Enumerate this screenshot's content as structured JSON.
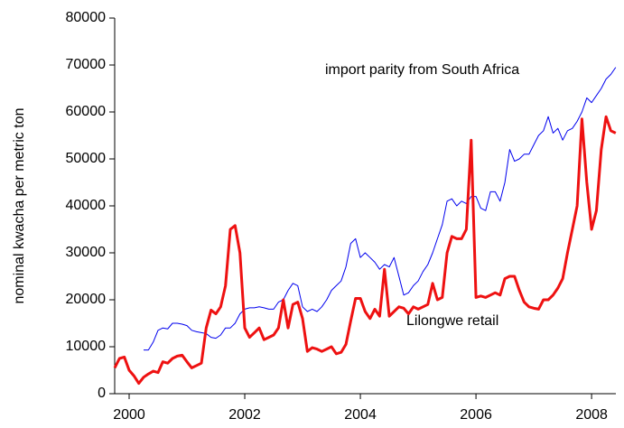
{
  "chart_data": {
    "type": "line",
    "y_label": "nominal kwacha per metric ton",
    "annotations": [
      "import parity from South Africa",
      "Lilongwe retail"
    ],
    "x": [
      1999.75,
      1999.833,
      1999.917,
      2000,
      2000.083,
      2000.167,
      2000.25,
      2000.333,
      2000.417,
      2000.5,
      2000.583,
      2000.667,
      2000.75,
      2000.833,
      2000.917,
      2001,
      2001.083,
      2001.167,
      2001.25,
      2001.333,
      2001.417,
      2001.5,
      2001.583,
      2001.667,
      2001.75,
      2001.833,
      2001.917,
      2002,
      2002.083,
      2002.167,
      2002.25,
      2002.333,
      2002.417,
      2002.5,
      2002.583,
      2002.667,
      2002.75,
      2002.833,
      2002.917,
      2003,
      2003.083,
      2003.167,
      2003.25,
      2003.333,
      2003.417,
      2003.5,
      2003.583,
      2003.667,
      2003.75,
      2003.833,
      2003.917,
      2004,
      2004.083,
      2004.167,
      2004.25,
      2004.333,
      2004.417,
      2004.5,
      2004.583,
      2004.667,
      2004.75,
      2004.833,
      2004.917,
      2005,
      2005.083,
      2005.167,
      2005.25,
      2005.333,
      2005.417,
      2005.5,
      2005.583,
      2005.667,
      2005.75,
      2005.833,
      2005.917,
      2006,
      2006.083,
      2006.167,
      2006.25,
      2006.333,
      2006.417,
      2006.5,
      2006.583,
      2006.667,
      2006.75,
      2006.833,
      2006.917,
      2007,
      2007.083,
      2007.167,
      2007.25,
      2007.333,
      2007.417,
      2007.5,
      2007.583,
      2007.667,
      2007.75,
      2007.833,
      2007.917,
      2008,
      2008.083,
      2008.167,
      2008.25,
      2008.333,
      2008.417
    ],
    "series": [
      {
        "name": "import parity from South Africa",
        "color": "#0000ee",
        "width": 1,
        "values": [
          null,
          null,
          null,
          null,
          null,
          null,
          9300,
          9300,
          11000,
          13500,
          14000,
          13800,
          15000,
          15000,
          14800,
          14500,
          13500,
          13200,
          13000,
          12800,
          12000,
          11800,
          12500,
          14000,
          14000,
          15000,
          17000,
          18000,
          18300,
          18300,
          18500,
          18300,
          18000,
          18000,
          19500,
          20000,
          22000,
          23500,
          23000,
          18500,
          17500,
          18000,
          17500,
          18500,
          20000,
          22000,
          23000,
          24000,
          27000,
          32000,
          33000,
          29000,
          30000,
          29000,
          28000,
          26500,
          27500,
          27000,
          29000,
          25000,
          21000,
          21500,
          23000,
          24000,
          26000,
          27500,
          30000,
          33000,
          36000,
          41000,
          41500,
          40000,
          41000,
          40500,
          42000,
          42000,
          39500,
          39000,
          43000,
          43000,
          41000,
          45000,
          52000,
          49500,
          50000,
          51000,
          51000,
          53000,
          55000,
          56000,
          59000,
          55500,
          56500,
          54000,
          56000,
          56500,
          58000,
          60000,
          63000,
          62000,
          63500,
          65000,
          67000,
          68000,
          69500
        ]
      },
      {
        "name": "Lilongwe retail",
        "color": "#ee1111",
        "width": 3,
        "values": [
          5500,
          7500,
          7800,
          5000,
          3800,
          2200,
          3500,
          4200,
          4800,
          4500,
          6800,
          6500,
          7500,
          8000,
          8200,
          6800,
          5500,
          6000,
          6500,
          14000,
          17800,
          17000,
          18500,
          23000,
          35000,
          35800,
          30000,
          14000,
          12000,
          13000,
          14000,
          11500,
          12000,
          12500,
          14000,
          20000,
          14000,
          19000,
          19500,
          16000,
          9000,
          9800,
          9500,
          9000,
          9500,
          10000,
          8500,
          8800,
          10500,
          15500,
          20300,
          20300,
          17500,
          16000,
          18000,
          16500,
          26500,
          16500,
          17500,
          18500,
          18200,
          17000,
          18500,
          18000,
          18500,
          19000,
          23500,
          20000,
          20500,
          30000,
          33500,
          33000,
          33000,
          35000,
          54000,
          20500,
          20800,
          20500,
          21000,
          21500,
          21000,
          24500,
          25000,
          25000,
          22000,
          19500,
          18500,
          18200,
          18000,
          20000,
          20000,
          21000,
          22500,
          24500,
          30000,
          35000,
          40000,
          58500,
          45000,
          35000,
          39000,
          52000,
          59000,
          56000,
          55500
        ]
      }
    ],
    "xlim": [
      1999.75,
      2008.42
    ],
    "xticks": [
      2000,
      2002,
      2004,
      2006,
      2008
    ],
    "ylim": [
      0,
      80000
    ],
    "yticks": [
      0,
      10000,
      20000,
      30000,
      40000,
      50000,
      60000,
      70000,
      80000
    ]
  }
}
